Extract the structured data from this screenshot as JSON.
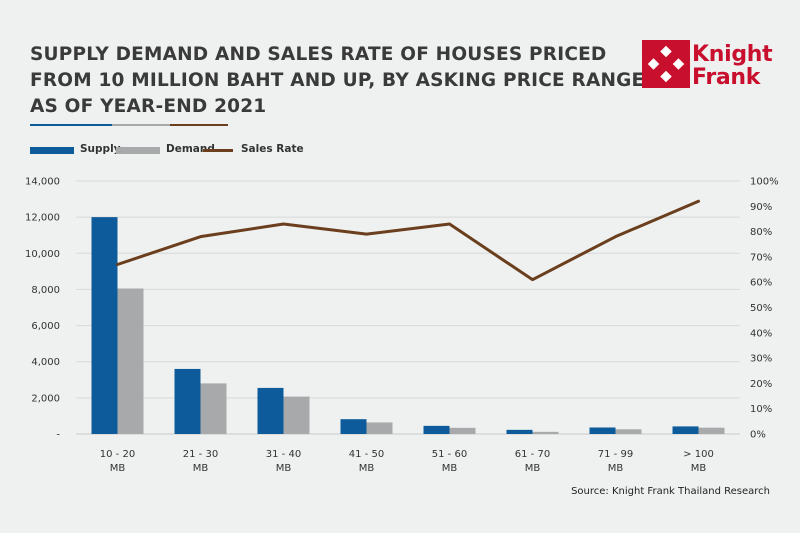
{
  "title_lines": [
    "SUPPLY DEMAND AND SALES RATE OF HOUSES PRICED",
    "FROM 10 MILLION BAHT AND UP, BY ASKING PRICE RANGES",
    "AS OF YEAR-END 2021"
  ],
  "logo": {
    "line1": "Knight",
    "line2": "Frank",
    "color": "#c8102e"
  },
  "source": "Source: Knight Frank Thailand Research",
  "colors": {
    "supply": "#0d5b9a",
    "demand": "#a8a9ab",
    "sales_rate": "#6b3f1e",
    "grid": "#d6d9d8"
  },
  "chart_data": {
    "type": "bar",
    "categories": [
      [
        "10 - 20",
        "MB"
      ],
      [
        "21 - 30",
        "MB"
      ],
      [
        "31 - 40",
        "MB"
      ],
      [
        "41 - 50",
        "MB"
      ],
      [
        "51 - 60",
        "MB"
      ],
      [
        "61 - 70",
        "MB"
      ],
      [
        "71 - 99",
        "MB"
      ],
      [
        "> 100",
        "MB"
      ]
    ],
    "series": [
      {
        "name": "Supply",
        "type": "bar",
        "axis": "left",
        "values": [
          12000,
          3600,
          2550,
          820,
          450,
          230,
          360,
          420
        ]
      },
      {
        "name": "Demand",
        "type": "bar",
        "axis": "left",
        "values": [
          8050,
          2800,
          2070,
          640,
          340,
          120,
          260,
          350
        ]
      },
      {
        "name": "Sales Rate",
        "type": "line",
        "axis": "right",
        "values": [
          67,
          78,
          83,
          79,
          83,
          61,
          78,
          92
        ]
      }
    ],
    "left_axis": {
      "ylim": [
        0,
        14000
      ],
      "ticks": [
        0,
        2000,
        4000,
        6000,
        8000,
        10000,
        12000,
        14000
      ],
      "tick_labels": [
        "-",
        "2,000",
        "4,000",
        "6,000",
        "8,000",
        "10,000",
        "12,000",
        "14,000"
      ]
    },
    "right_axis": {
      "ylim": [
        0,
        100
      ],
      "ticks": [
        0,
        10,
        20,
        30,
        40,
        50,
        60,
        70,
        80,
        90,
        100
      ],
      "tick_labels": [
        "0%",
        "10%",
        "20%",
        "30%",
        "40%",
        "50%",
        "60%",
        "70%",
        "80%",
        "90%",
        "100%"
      ]
    },
    "grid": true,
    "legend_position": "top-left"
  }
}
